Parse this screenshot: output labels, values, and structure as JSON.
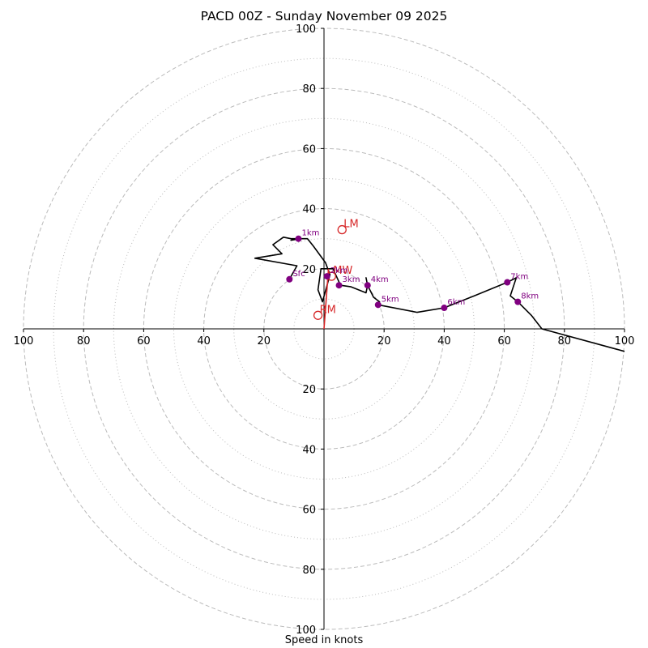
{
  "chart_data": {
    "type": "hodograph",
    "title": "PACD 00Z - Sunday November 09 2025",
    "xlabel": "Speed in knots",
    "ylabel": "",
    "xlim": [
      -100,
      100
    ],
    "ylim": [
      -100,
      100
    ],
    "major_rings": [
      20,
      40,
      60,
      80,
      100
    ],
    "minor_rings": [
      10,
      30,
      50,
      70,
      90
    ],
    "axis_ticks": [
      {
        "value": -100,
        "label": "100"
      },
      {
        "value": -80,
        "label": "80"
      },
      {
        "value": -60,
        "label": "60"
      },
      {
        "value": -40,
        "label": "40"
      },
      {
        "value": -20,
        "label": "20"
      },
      {
        "value": 20,
        "label": "20"
      },
      {
        "value": 40,
        "label": "40"
      },
      {
        "value": 60,
        "label": "60"
      },
      {
        "value": 80,
        "label": "80"
      },
      {
        "value": 100,
        "label": "100"
      }
    ],
    "colors": {
      "trace": "#000000",
      "markers": "#800080",
      "motion": "#d62728",
      "ring": "#bbbbbb",
      "axis": "#000000"
    },
    "hodograph": [
      [
        -11.5,
        16.5
      ],
      [
        -9,
        21
      ],
      [
        -23,
        23.5
      ],
      [
        -14,
        25
      ],
      [
        -17,
        28
      ],
      [
        -13.5,
        30.5
      ],
      [
        -11,
        30
      ],
      [
        -9,
        30
      ],
      [
        -11,
        29.5
      ],
      [
        -8,
        30
      ],
      [
        -5.5,
        30
      ],
      [
        -3.5,
        27.5
      ],
      [
        0.5,
        22
      ],
      [
        2,
        18
      ],
      [
        -0.5,
        9
      ],
      [
        -2,
        13
      ],
      [
        -1,
        20
      ],
      [
        3,
        20
      ],
      [
        5.5,
        14.5
      ],
      [
        9,
        14
      ],
      [
        14,
        12
      ],
      [
        14.5,
        14.5
      ],
      [
        14,
        17
      ],
      [
        14.5,
        14.5
      ],
      [
        16.5,
        10.5
      ],
      [
        18.5,
        9
      ],
      [
        18,
        8
      ],
      [
        31,
        5.5
      ],
      [
        40,
        7
      ],
      [
        50,
        11
      ],
      [
        61,
        15.5
      ],
      [
        64,
        17
      ],
      [
        62,
        11
      ],
      [
        64.5,
        9
      ],
      [
        69,
        4.5
      ],
      [
        72.5,
        0
      ],
      [
        100,
        -7.5
      ]
    ],
    "height_markers": [
      {
        "label": "Sfc",
        "u": -11.5,
        "v": 16.5
      },
      {
        "label": "1km",
        "u": -8.5,
        "v": 30
      },
      {
        "label": "2km",
        "u": 1,
        "v": 17.5
      },
      {
        "label": "3km",
        "u": 5,
        "v": 14.5
      },
      {
        "label": "4km",
        "u": 14.5,
        "v": 14.5
      },
      {
        "label": "5km",
        "u": 18,
        "v": 8
      },
      {
        "label": "6km",
        "u": 40,
        "v": 7
      },
      {
        "label": "7km",
        "u": 61,
        "v": 15.5
      },
      {
        "label": "8km",
        "u": 64.5,
        "v": 9
      }
    ],
    "storm_motion": [
      {
        "label": "RM",
        "u": -2,
        "v": 4.5
      },
      {
        "label": "LM",
        "u": 6,
        "v": 33
      },
      {
        "label": "MW",
        "u": 2.5,
        "v": 17.5
      }
    ],
    "motion_vector": {
      "from": [
        0,
        0
      ],
      "to": [
        1.5,
        20
      ]
    }
  }
}
